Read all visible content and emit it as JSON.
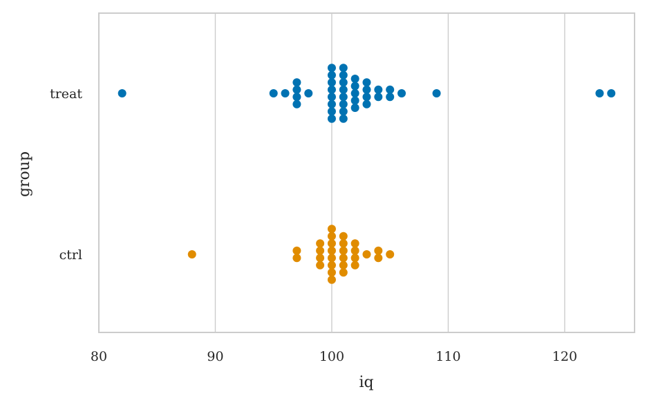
{
  "chart_data": {
    "type": "scatter",
    "variant": "swarm",
    "xlabel": "iq",
    "ylabel": "group",
    "xlim": [
      80,
      126
    ],
    "xticks": [
      80,
      90,
      100,
      110,
      120
    ],
    "xgrid": true,
    "categories": [
      "treat",
      "ctrl"
    ],
    "series": [
      {
        "category": "treat",
        "color": "#0072b2",
        "values": [
          82,
          95,
          96,
          97,
          97,
          97,
          97,
          98,
          100,
          100,
          100,
          100,
          100,
          100,
          100,
          100,
          101,
          101,
          101,
          101,
          101,
          101,
          101,
          101,
          102,
          102,
          102,
          102,
          102,
          103,
          103,
          103,
          103,
          104,
          104,
          105,
          105,
          106,
          109,
          123,
          124
        ]
      },
      {
        "category": "ctrl",
        "color": "#e08c00",
        "values": [
          88,
          97,
          97,
          99,
          99,
          99,
          99,
          100,
          100,
          100,
          100,
          100,
          100,
          100,
          100,
          101,
          101,
          101,
          101,
          101,
          101,
          102,
          102,
          102,
          102,
          103,
          104,
          104,
          105
        ]
      }
    ]
  }
}
